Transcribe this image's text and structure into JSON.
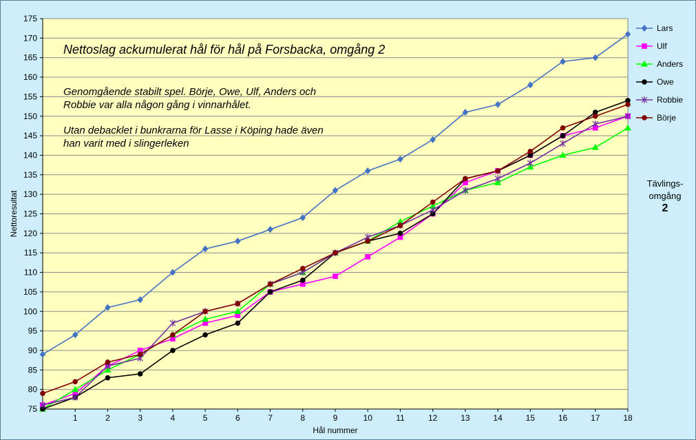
{
  "chart_data": {
    "type": "line",
    "title": "Nettoslag ackumulerat hål för hål på Forsbacka, omgång 2",
    "xlabel": "Hål nummer",
    "ylabel": "Nettoresultat",
    "x": [
      0,
      1,
      2,
      3,
      4,
      5,
      6,
      7,
      8,
      9,
      10,
      11,
      12,
      13,
      14,
      15,
      16,
      17,
      18
    ],
    "x_tick_labels": [
      "1",
      "2",
      "3",
      "4",
      "5",
      "6",
      "7",
      "8",
      "9",
      "10",
      "11",
      "12",
      "13",
      "14",
      "15",
      "16",
      "17",
      "18"
    ],
    "ylim": [
      75,
      175
    ],
    "y_ticks": [
      75,
      80,
      85,
      90,
      95,
      100,
      105,
      110,
      115,
      120,
      125,
      130,
      135,
      140,
      145,
      150,
      155,
      160,
      165,
      170,
      175
    ],
    "grid": true,
    "legend_position": "top-right",
    "series": [
      {
        "name": "Lars",
        "color": "#4472c4",
        "marker": "diamond",
        "values": [
          89,
          94,
          101,
          103,
          110,
          116,
          118,
          121,
          124,
          131,
          136,
          139,
          144,
          151,
          153,
          158,
          164,
          165,
          171
        ]
      },
      {
        "name": "Ulf",
        "color": "#ff00ff",
        "marker": "square",
        "values": [
          76,
          79,
          86,
          90,
          93,
          97,
          99,
          105,
          107,
          109,
          114,
          119,
          125,
          133,
          136,
          140,
          145,
          147,
          150
        ]
      },
      {
        "name": "Anders",
        "color": "#00ff00",
        "marker": "triangle",
        "values": [
          75,
          80,
          85,
          89,
          94,
          98,
          100,
          107,
          110,
          115,
          118,
          123,
          127,
          131,
          133,
          137,
          140,
          142,
          147
        ]
      },
      {
        "name": "Owe",
        "color": "#000000",
        "marker": "circle",
        "values": [
          75,
          78,
          83,
          84,
          90,
          94,
          97,
          105,
          108,
          115,
          118,
          120,
          125,
          134,
          136,
          140,
          145,
          151,
          154
        ]
      },
      {
        "name": "Robbie",
        "color": "#7030a0",
        "marker": "star",
        "values": [
          76,
          78,
          86,
          88,
          97,
          100,
          102,
          107,
          110,
          115,
          119,
          122,
          126,
          131,
          134,
          138,
          143,
          148,
          150
        ]
      },
      {
        "name": "Börje",
        "color": "#800000",
        "marker": "circle",
        "values": [
          79,
          82,
          87,
          89,
          94,
          100,
          102,
          107,
          111,
          115,
          118,
          122,
          128,
          134,
          136,
          141,
          147,
          150,
          153
        ]
      }
    ],
    "annotations": [
      "Genomgående stabilt spel. Börje, Owe, Ulf, Anders och",
      "Robbie var alla någon gång i vinnarhålet.",
      "Utan debacklet i bunkrarna för Lasse i Köping hade även",
      "han varit med i slingerleken"
    ],
    "side_label_lines": [
      "Tävlings-",
      "omgång"
    ],
    "side_number": "2",
    "plot_background": "#ffffc0",
    "gridline_color": "#8c8c8c"
  }
}
